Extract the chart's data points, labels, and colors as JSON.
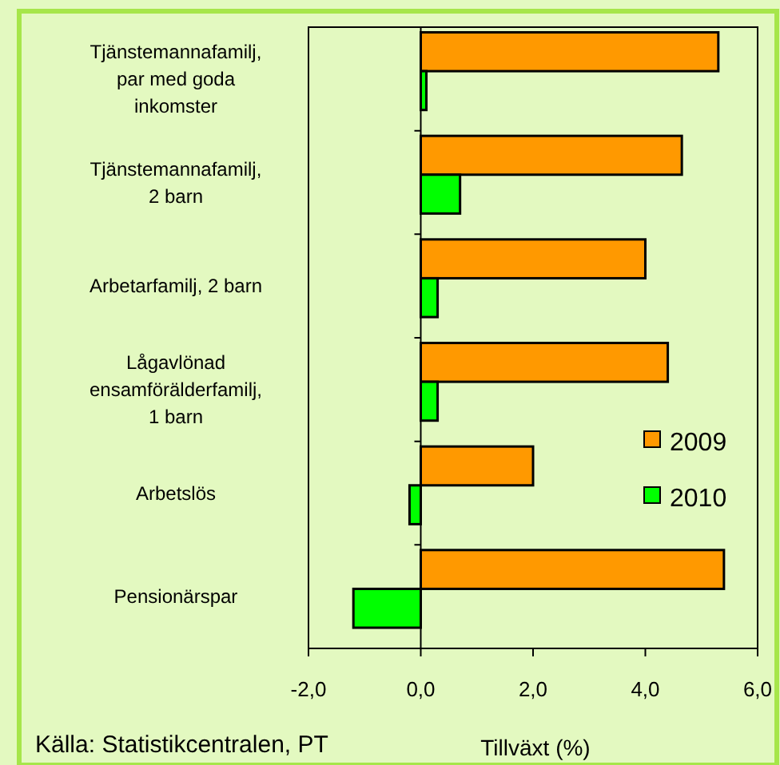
{
  "chart_data": {
    "type": "bar",
    "orientation": "horizontal",
    "xlabel": "Tillväxt (%)",
    "categories": [
      "Tjänstemannafamilj, par med goda inkomster",
      "Tjänstemannafamilj, 2 barn",
      "Arbetarfamilj, 2 barn",
      "Lågavlönad ensamförälderfamilj, 1 barn",
      "Arbetslös",
      "Pensionärspar"
    ],
    "series": [
      {
        "name": "2009",
        "color": "#ff9900",
        "values": [
          5.3,
          4.65,
          4.0,
          4.4,
          2.0,
          5.4
        ]
      },
      {
        "name": "2010",
        "color": "#00ff00",
        "values": [
          0.1,
          0.7,
          0.3,
          0.3,
          -0.2,
          -1.2
        ]
      }
    ],
    "xlim": [
      -2,
      6
    ],
    "xticks": [
      {
        "value": -2,
        "label": "-2,0"
      },
      {
        "value": 0,
        "label": "0,0"
      },
      {
        "value": 2,
        "label": "2,0"
      },
      {
        "value": 4,
        "label": "4,0"
      },
      {
        "value": 6,
        "label": "6,0"
      }
    ],
    "legend": "right",
    "annotations": [
      "Källa: Statistikcentralen, PT"
    ]
  }
}
